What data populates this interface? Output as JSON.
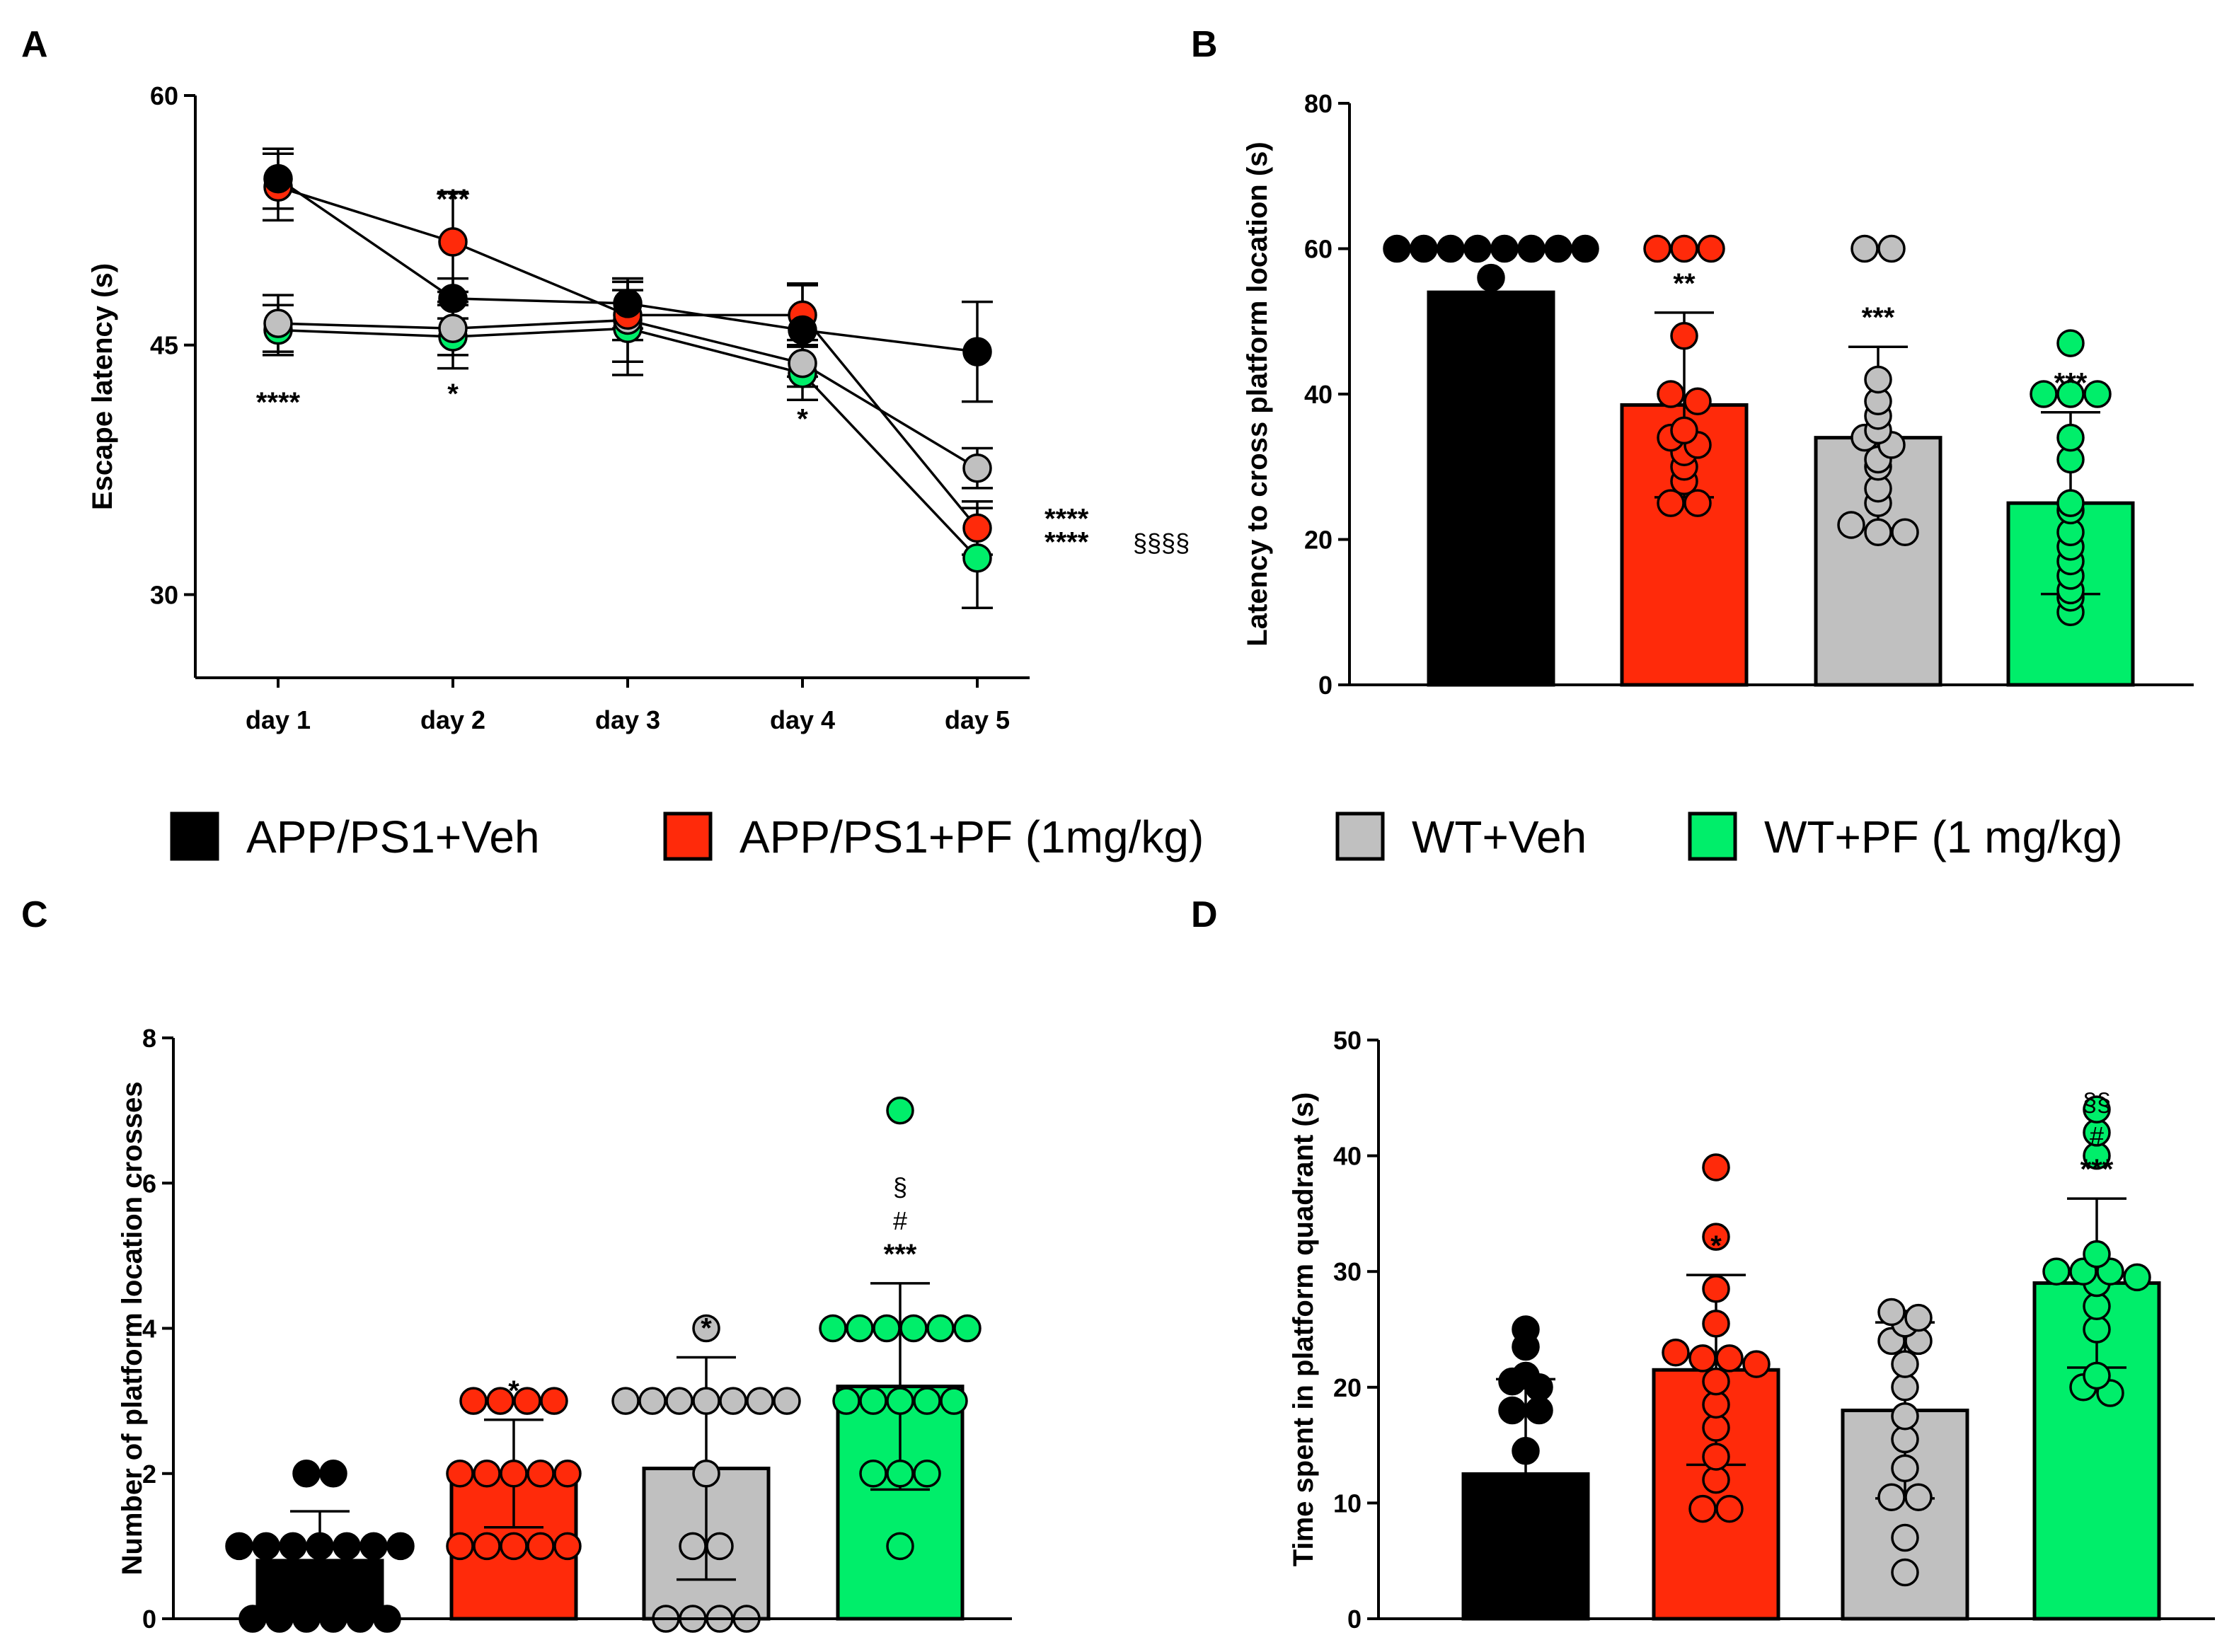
{
  "colors": {
    "APP/PS1+Veh": "#000000",
    "APP/PS1+PF (1mg/kg)": "#ff2a0a",
    "WT+Veh": "#c0c0c0",
    "WT+PF (1 mg/kg)": "#00ee6a"
  },
  "legend": {
    "items": [
      {
        "label": "APP/PS1+Veh",
        "color": "#000000"
      },
      {
        "label": "APP/PS1+PF (1mg/kg)",
        "color": "#ff2a0a"
      },
      {
        "label": "WT+Veh",
        "color": "#c0c0c0"
      },
      {
        "label": "WT+PF (1 mg/kg)",
        "color": "#00ee6a"
      }
    ]
  },
  "chart_data": [
    {
      "panel": "A",
      "type": "line",
      "ylabel": "Escape latency (s)",
      "xlabel": "",
      "categories": [
        "day 1",
        "day 2",
        "day 3",
        "day 4",
        "day 5"
      ],
      "ylim": [
        25,
        60
      ],
      "yticks": [
        30,
        45,
        60
      ],
      "series": [
        {
          "name": "APP/PS1+Veh",
          "color": "#000000",
          "values": [
            55.0,
            47.8,
            47.5,
            45.9,
            44.6
          ],
          "errors": [
            1.8,
            1.2,
            1.5,
            2.8,
            3.0
          ]
        },
        {
          "name": "APP/PS1+PF (1mg/kg)",
          "color": "#ff2a0a",
          "values": [
            54.5,
            51.2,
            46.8,
            46.8,
            34.0
          ],
          "errors": [
            2.0,
            3.0,
            1.5,
            1.8,
            1.6
          ]
        },
        {
          "name": "WT+Veh",
          "color": "#c0c0c0",
          "values": [
            46.3,
            46.0,
            46.5,
            43.9,
            37.6
          ],
          "errors": [
            1.7,
            1.6,
            2.5,
            1.4,
            1.2
          ]
        },
        {
          "name": "WT+PF (1 mg/kg)",
          "color": "#00ee6a",
          "values": [
            45.9,
            45.5,
            46.0,
            43.3,
            32.2
          ],
          "errors": [
            1.5,
            1.9,
            2.8,
            1.6,
            3.0
          ]
        }
      ],
      "annotations": [
        {
          "category": "day 1",
          "text": "****",
          "y": 41.0
        },
        {
          "category": "day 2",
          "text": "***",
          "y": 53.2
        },
        {
          "category": "day 2",
          "text": "*",
          "y": 41.5
        },
        {
          "category": "day 4",
          "text": "*",
          "y": 40.0
        },
        {
          "category": "day 5",
          "text": "****",
          "y": 34.0
        },
        {
          "category": "day 5",
          "text": "****",
          "y": 32.6
        },
        {
          "category": "day 5",
          "text": "§§§§",
          "y": 32.6
        }
      ]
    },
    {
      "panel": "B",
      "type": "bar",
      "ylabel": "Latency to cross platform location (s)",
      "categories": [
        "APP/PS1+Veh",
        "APP/PS1+PF (1mg/kg)",
        "WT+Veh",
        "WT+PF (1 mg/kg)"
      ],
      "ylim": [
        0,
        80
      ],
      "yticks": [
        0,
        20,
        40,
        60,
        80
      ],
      "values": [
        54,
        38.5,
        34,
        25
      ],
      "errors": [
        0,
        12.7,
        12.5,
        12.5
      ],
      "points": [
        [
          60,
          60,
          60,
          60,
          60,
          60,
          60,
          60,
          56
        ],
        [
          60,
          60,
          60,
          48,
          40,
          39,
          35,
          34,
          33,
          32,
          30,
          28,
          25,
          25
        ],
        [
          60,
          60,
          42,
          39,
          37,
          35,
          34,
          33,
          31,
          30,
          27,
          25,
          22,
          21,
          21
        ],
        [
          47,
          40,
          40,
          40,
          34,
          31,
          25,
          24,
          21,
          19,
          17,
          15,
          13,
          12,
          10
        ]
      ],
      "annotations": [
        "",
        "**",
        "***",
        "***"
      ]
    },
    {
      "panel": "C",
      "type": "bar",
      "ylabel": "Number of platform location crosses",
      "categories": [
        "APP/PS1+Veh",
        "APP/PS1+PF (1mg/kg)",
        "WT+Veh",
        "WT+PF (1 mg/kg)"
      ],
      "ylim": [
        0,
        8
      ],
      "yticks": [
        0,
        2,
        4,
        6,
        8
      ],
      "values": [
        0.8,
        2.0,
        2.07,
        3.2
      ],
      "errors": [
        0.68,
        0.74,
        1.53,
        1.42
      ],
      "points": [
        [
          2,
          2,
          1,
          1,
          1,
          1,
          1,
          1,
          1,
          0,
          0,
          0,
          0,
          0,
          0
        ],
        [
          3,
          3,
          3,
          3,
          2,
          2,
          2,
          2,
          2,
          1,
          1,
          1,
          1,
          1
        ],
        [
          4,
          3,
          3,
          3,
          3,
          3,
          3,
          3,
          2,
          1,
          1,
          0,
          0,
          0,
          0
        ],
        [
          7,
          4,
          4,
          4,
          4,
          4,
          4,
          3,
          3,
          3,
          3,
          3,
          2,
          2,
          2,
          1
        ]
      ],
      "annotations": [
        "",
        "*",
        "*",
        "***"
      ],
      "extra_marks": [
        "#",
        "§"
      ]
    },
    {
      "panel": "D",
      "type": "bar",
      "ylabel": "Time spent in platform quadrant (s)",
      "categories": [
        "APP/PS1+Veh",
        "APP/PS1+PF (1mg/kg)",
        "WT+Veh",
        "WT+PF (1 mg/kg)"
      ],
      "ylim": [
        0,
        50
      ],
      "yticks": [
        0,
        10,
        20,
        30,
        40,
        50
      ],
      "values": [
        12.5,
        21.5,
        18.0,
        29.0
      ],
      "errors": [
        8.2,
        8.2,
        7.6,
        7.3
      ],
      "points": [
        [
          25,
          23.5,
          21,
          20.5,
          20,
          18,
          18,
          14.5
        ],
        [
          39,
          33,
          28.5,
          25.5,
          23,
          22.5,
          22.5,
          22,
          20.5,
          18.5,
          16.5,
          14,
          12,
          9.5,
          9.5
        ],
        [
          26.5,
          26,
          25.5,
          24,
          24,
          22,
          20,
          17.5,
          15.5,
          13,
          10.5,
          10.5,
          7,
          4
        ],
        [
          44,
          42,
          40,
          31.5,
          30,
          30,
          30,
          29.5,
          29,
          27,
          25,
          21,
          20,
          19.5
        ]
      ],
      "annotations": [
        "",
        "*",
        "",
        "***"
      ],
      "extra_marks": [
        "#",
        "§§"
      ]
    }
  ],
  "labels": {
    "A": "A",
    "B": "B",
    "C": "C",
    "D": "D"
  }
}
